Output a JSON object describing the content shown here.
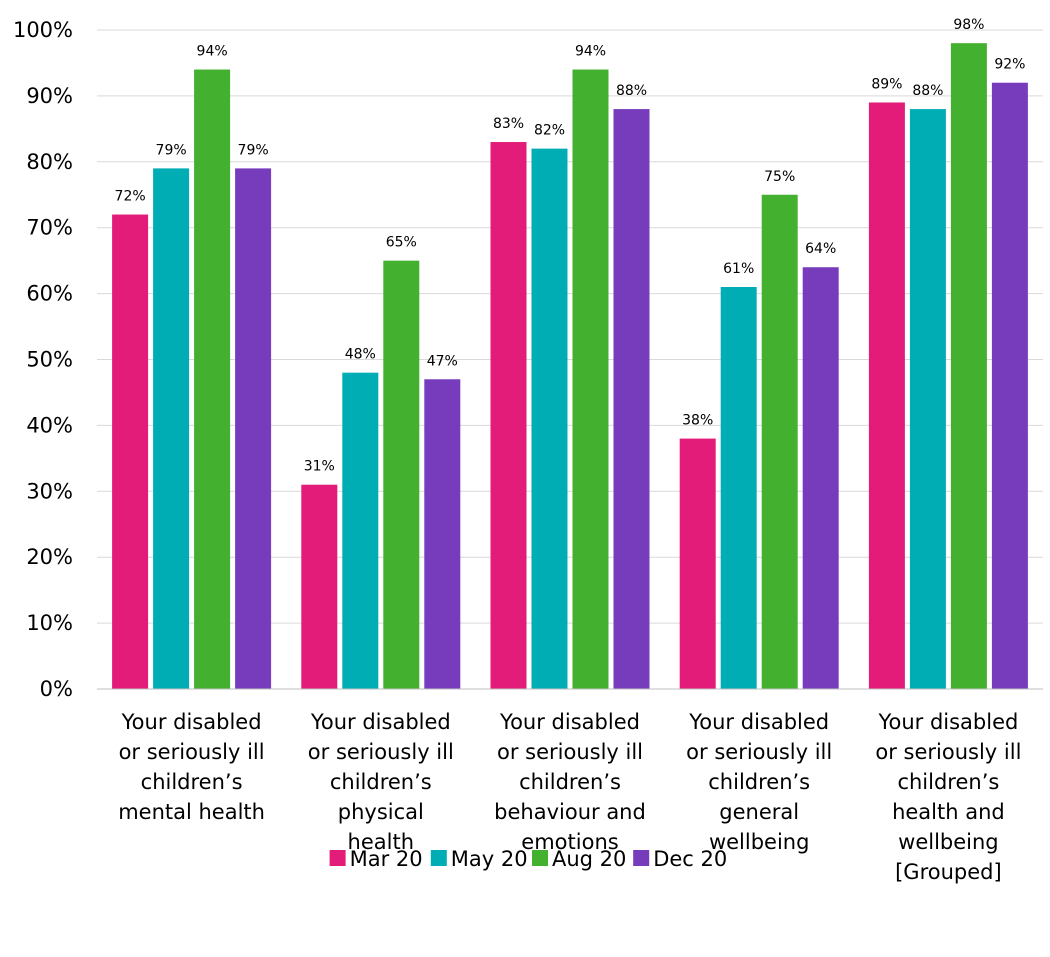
{
  "chart_data": {
    "type": "bar",
    "title": "",
    "xlabel": "",
    "ylabel": "",
    "ylim": [
      0,
      100
    ],
    "y_ticks": [
      "0%",
      "10%",
      "20%",
      "30%",
      "40%",
      "50%",
      "60%",
      "70%",
      "80%",
      "90%",
      "100%"
    ],
    "grid": true,
    "legend_position": "bottom",
    "categories": [
      [
        "Your disabled",
        "or seriously ill",
        "children’s",
        "mental health"
      ],
      [
        "Your disabled",
        "or seriously ill",
        "children’s",
        "physical",
        "health"
      ],
      [
        "Your disabled",
        "or seriously ill",
        "children’s",
        "behaviour and",
        "emotions"
      ],
      [
        "Your disabled",
        "or seriously ill",
        "children’s",
        "general",
        "wellbeing"
      ],
      [
        "Your disabled",
        "or seriously ill",
        "children’s",
        "health and",
        "wellbeing",
        "[Grouped]"
      ]
    ],
    "series": [
      {
        "name": "Mar 20",
        "color": "#e31c79",
        "values": [
          72,
          31,
          83,
          38,
          89
        ],
        "labels": [
          "72%",
          "31%",
          "83%",
          "38%",
          "89%"
        ]
      },
      {
        "name": "May 20",
        "color": "#00adb5",
        "values": [
          79,
          48,
          82,
          61,
          88
        ],
        "labels": [
          "79%",
          "48%",
          "82%",
          "61%",
          "88%"
        ]
      },
      {
        "name": "Aug 20",
        "color": "#44b02f",
        "values": [
          94,
          65,
          94,
          75,
          98
        ],
        "labels": [
          "94%",
          "65%",
          "94%",
          "75%",
          "98%"
        ]
      },
      {
        "name": "Dec 20",
        "color": "#763cbb",
        "values": [
          79,
          47,
          88,
          64,
          92
        ],
        "labels": [
          "79%",
          "47%",
          "88%",
          "64%",
          "92%"
        ]
      }
    ]
  }
}
